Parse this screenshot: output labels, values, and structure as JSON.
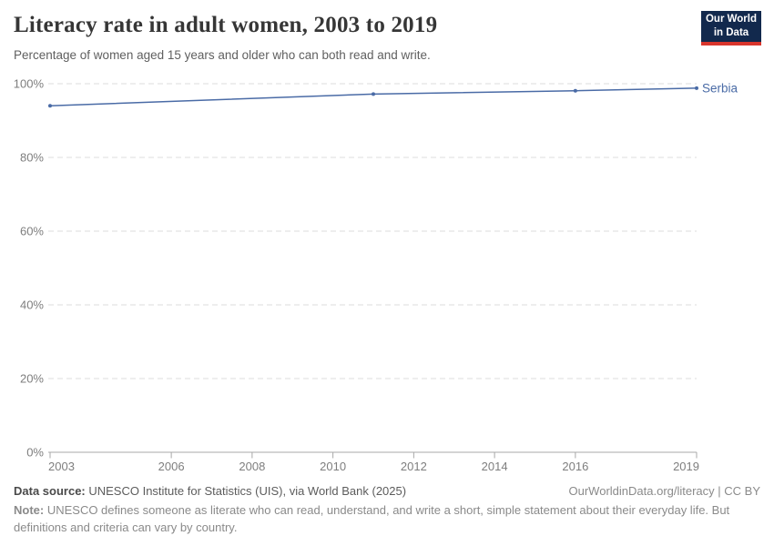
{
  "header": {
    "title": "Literacy rate in adult women, 2003 to 2019",
    "subtitle": "Percentage of women aged 15 years and older who can both read and write.",
    "logo": {
      "line1": "Our World",
      "line2": "in Data",
      "bg_color": "#12294d",
      "accent_color": "#d8352c"
    }
  },
  "chart_data": {
    "type": "line",
    "title": "Literacy rate in adult women, 2003 to 2019",
    "xlabel": "",
    "ylabel": "",
    "xlim": [
      2003,
      2019
    ],
    "ylim": [
      0,
      100
    ],
    "x_ticks": [
      2003,
      2006,
      2008,
      2010,
      2012,
      2014,
      2016,
      2019
    ],
    "y_ticks": [
      0,
      20,
      40,
      60,
      80,
      100
    ],
    "y_tick_suffix": "%",
    "grid": "horizontal-dashed",
    "legend_position": "end-of-line",
    "colors": {
      "grid": "#dedede",
      "axis": "#a8a8a8",
      "tick_label": "#7e7e7e"
    },
    "series": [
      {
        "name": "Serbia",
        "color": "#4a6ba6",
        "points": [
          {
            "year": 2003,
            "value": 94.0
          },
          {
            "year": 2011,
            "value": 97.2
          },
          {
            "year": 2016,
            "value": 98.1
          },
          {
            "year": 2019,
            "value": 98.8
          }
        ]
      }
    ]
  },
  "footer": {
    "datasource_label": "Data source:",
    "datasource_text": " UNESCO Institute for Statistics (UIS), via World Bank (2025)",
    "link_text": "OurWorldinData.org/literacy | CC BY",
    "note_label": "Note:",
    "note_text": " UNESCO defines someone as literate who can read, understand, and write a short, simple statement about their everyday life. But definitions and criteria can vary by country."
  }
}
